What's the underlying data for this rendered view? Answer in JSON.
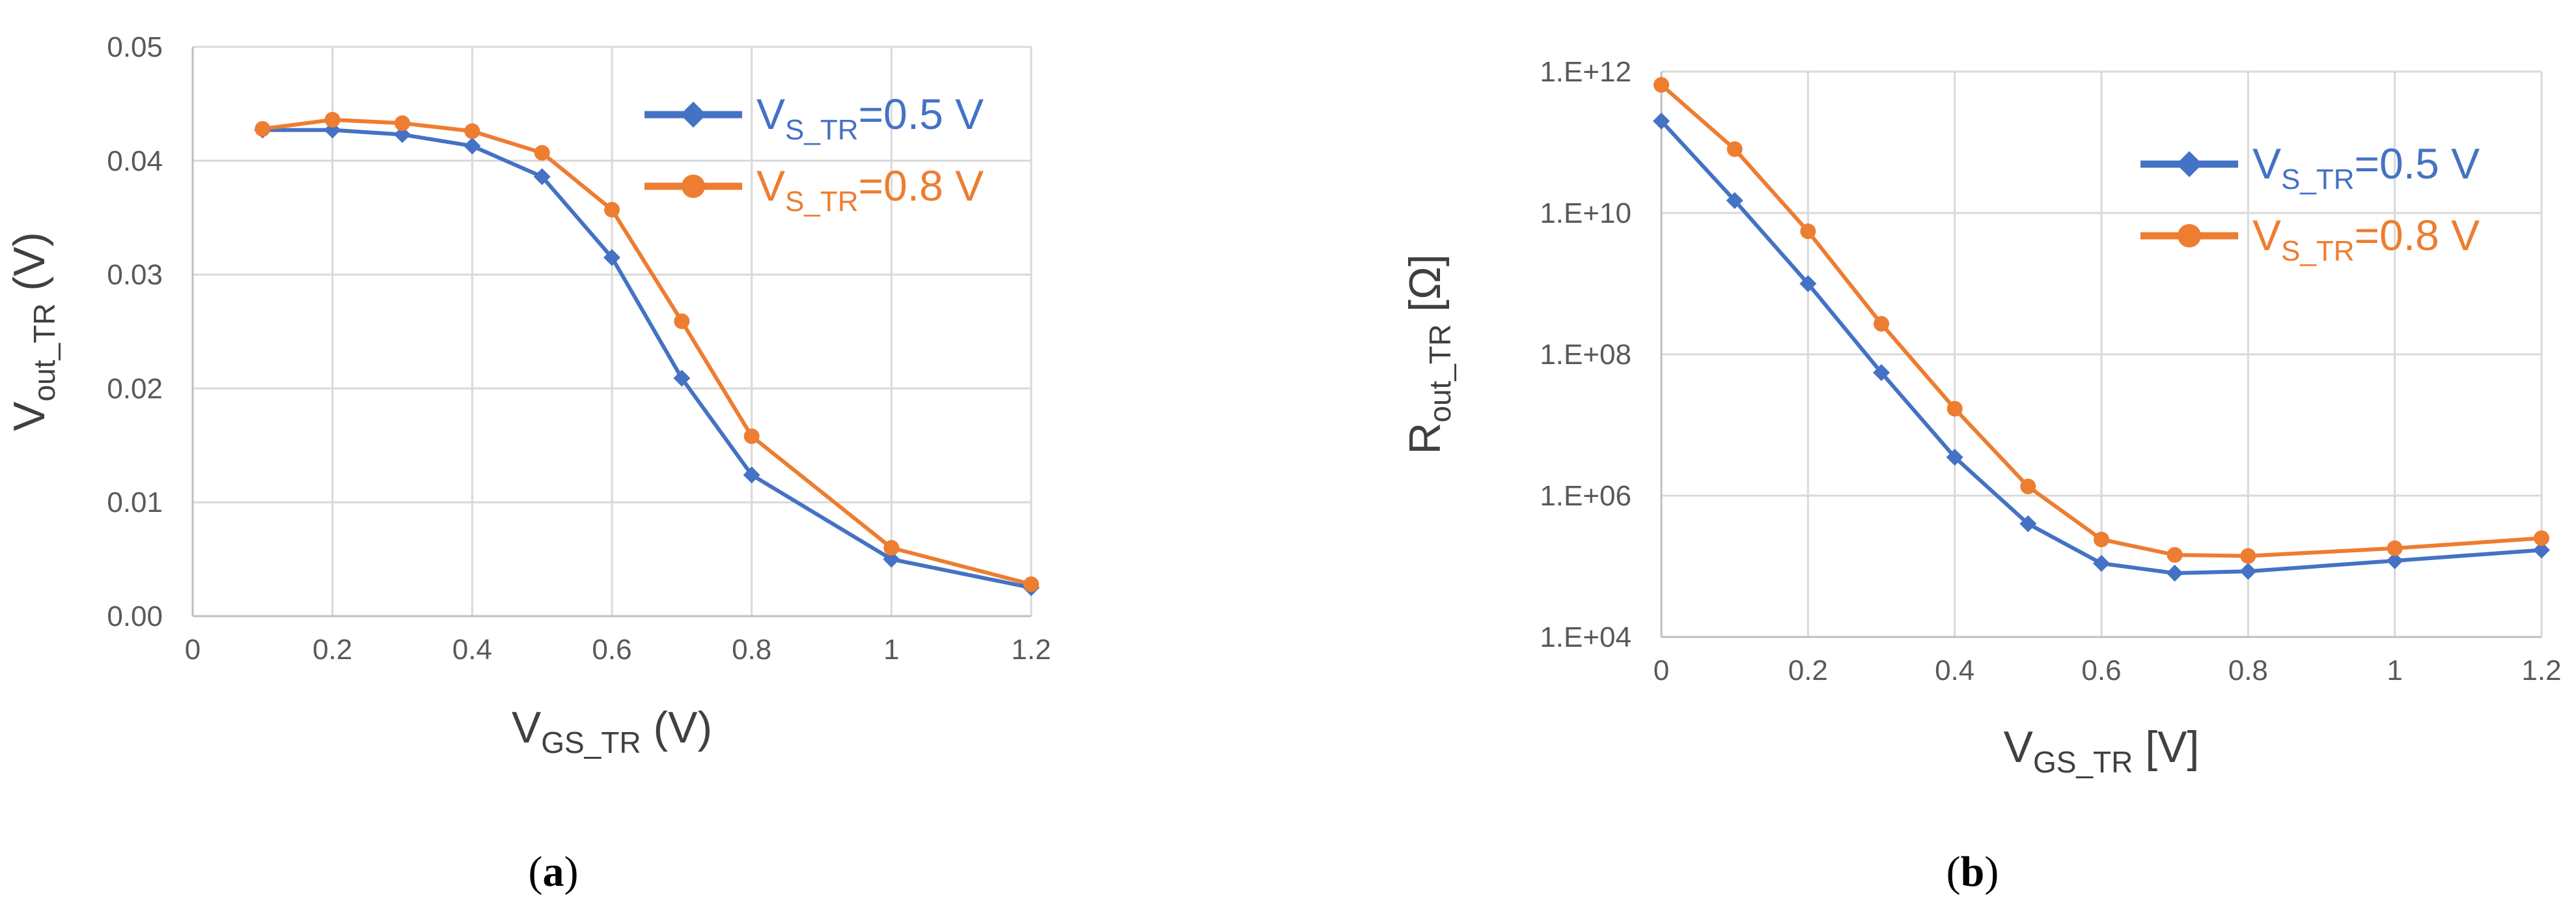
{
  "chart_data": [
    {
      "type": "line",
      "panel_label": "a",
      "xlabel": {
        "main": "V",
        "sub": "GS_TR",
        "unit": " (V)"
      },
      "ylabel": {
        "main": "V",
        "sub": "out_TR",
        "unit": " (V)"
      },
      "xlim": [
        0,
        1.2
      ],
      "ylim": [
        0,
        0.05
      ],
      "y_scale": "linear",
      "x_ticks": [
        0,
        0.2,
        0.4,
        0.6,
        0.8,
        1,
        1.2
      ],
      "x_tick_labels": [
        "0",
        "0.2",
        "0.4",
        "0.6",
        "0.8",
        "1",
        "1.2"
      ],
      "y_ticks": [
        0,
        0.01,
        0.02,
        0.03,
        0.04,
        0.05
      ],
      "y_tick_labels": [
        "0.00",
        "0.01",
        "0.02",
        "0.03",
        "0.04",
        "0.05"
      ],
      "grid": true,
      "legend_position": "top-right",
      "series": [
        {
          "name": {
            "main": "V",
            "sub": "S_TR",
            "rest": "=0.5 V"
          },
          "color": "#4472c4",
          "marker": "diamond",
          "x": [
            0.1,
            0.2,
            0.3,
            0.4,
            0.5,
            0.6,
            0.7,
            0.8,
            1.0,
            1.2
          ],
          "y": [
            0.0427,
            0.0427,
            0.0423,
            0.0413,
            0.0386,
            0.0315,
            0.0209,
            0.0124,
            0.005,
            0.0025
          ]
        },
        {
          "name": {
            "main": "V",
            "sub": "S_TR",
            "rest": "=0.8 V"
          },
          "color": "#ed7d31",
          "marker": "circle",
          "x": [
            0.1,
            0.2,
            0.3,
            0.4,
            0.5,
            0.6,
            0.7,
            0.8,
            1.0,
            1.2
          ],
          "y": [
            0.0428,
            0.0436,
            0.0433,
            0.0426,
            0.0407,
            0.0357,
            0.0259,
            0.0158,
            0.006,
            0.0028
          ]
        }
      ]
    },
    {
      "type": "line",
      "panel_label": "b",
      "xlabel": {
        "main": "V",
        "sub": "GS_TR",
        "unit": "  [V]"
      },
      "ylabel": {
        "main": "R",
        "sub": "out_TR",
        "unit": " [Ω]"
      },
      "xlim": [
        0,
        1.2
      ],
      "ylim": [
        10000,
        1000000000000
      ],
      "y_scale": "log",
      "x_ticks": [
        0,
        0.2,
        0.4,
        0.6,
        0.8,
        1,
        1.2
      ],
      "x_tick_labels": [
        "0",
        "0.2",
        "0.4",
        "0.6",
        "0.8",
        "1",
        "1.2"
      ],
      "y_ticks": [
        10000,
        1000000,
        100000000,
        10000000000,
        1000000000000
      ],
      "y_tick_labels": [
        "1.E+04",
        "1.E+06",
        "1.E+08",
        "1.E+10",
        "1.E+12"
      ],
      "grid": true,
      "legend_position": "top-right",
      "series": [
        {
          "name": {
            "main": "V",
            "sub": "S_TR",
            "rest": "=0.5 V"
          },
          "color": "#4472c4",
          "marker": "diamond",
          "x": [
            0,
            0.1,
            0.2,
            0.3,
            0.4,
            0.5,
            0.6,
            0.7,
            0.8,
            1.0,
            1.2
          ],
          "y": [
            200000000000,
            15000000000,
            1000000000,
            55000000,
            3500000,
            400000,
            110000,
            80000,
            85000,
            120000,
            170000
          ]
        },
        {
          "name": {
            "main": "V",
            "sub": "S_TR",
            "rest": "=0.8 V"
          },
          "color": "#ed7d31",
          "marker": "circle",
          "x": [
            0,
            0.1,
            0.2,
            0.3,
            0.4,
            0.5,
            0.6,
            0.7,
            0.8,
            1.0,
            1.2
          ],
          "y": [
            650000000000,
            80000000000,
            5500000000,
            270000000,
            17000000,
            1350000,
            240000,
            145000,
            140000,
            180000,
            250000
          ]
        }
      ]
    }
  ]
}
